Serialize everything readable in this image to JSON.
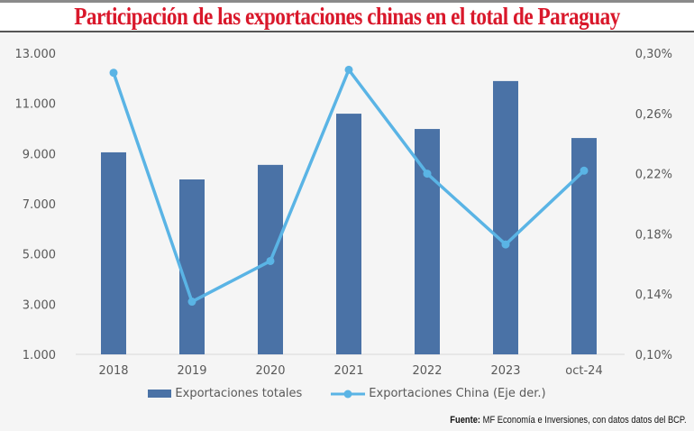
{
  "chart_data": {
    "type": "bar+line",
    "title": "Participación de las exportaciones chinas en el total de Paraguay",
    "categories": [
      "2018",
      "2019",
      "2020",
      "2021",
      "2022",
      "2023",
      "oct-24"
    ],
    "series": [
      {
        "name": "Exportaciones totales",
        "type": "bar",
        "axis": "left",
        "color": "#4a72a6",
        "values": [
          9050,
          7970,
          8550,
          10590,
          9980,
          11890,
          9620
        ]
      },
      {
        "name": "Exportaciones China (Eje der.)",
        "type": "line",
        "axis": "right",
        "color": "#5ab4e5",
        "values": [
          0.287,
          0.135,
          0.162,
          0.289,
          0.22,
          0.173,
          0.222
        ]
      }
    ],
    "left_axis": {
      "range": [
        1000,
        13000
      ],
      "ticks": [
        1000,
        3000,
        5000,
        7000,
        9000,
        11000,
        13000
      ],
      "tick_labels": [
        "1.000",
        "3.000",
        "5.000",
        "7.000",
        "9.000",
        "11.000",
        "13.000"
      ]
    },
    "right_axis": {
      "range": [
        0.1,
        0.3
      ],
      "unit": "%",
      "ticks": [
        0.1,
        0.14,
        0.18,
        0.22,
        0.26,
        0.3
      ],
      "tick_labels": [
        "0,10%",
        "0,14%",
        "0,18%",
        "0,22%",
        "0,26%",
        "0,30%"
      ]
    },
    "grid": false,
    "legend_position": "bottom"
  },
  "source": {
    "label": "Fuente:",
    "text": " MF Economía e Inversiones, con datos datos del BCP."
  }
}
